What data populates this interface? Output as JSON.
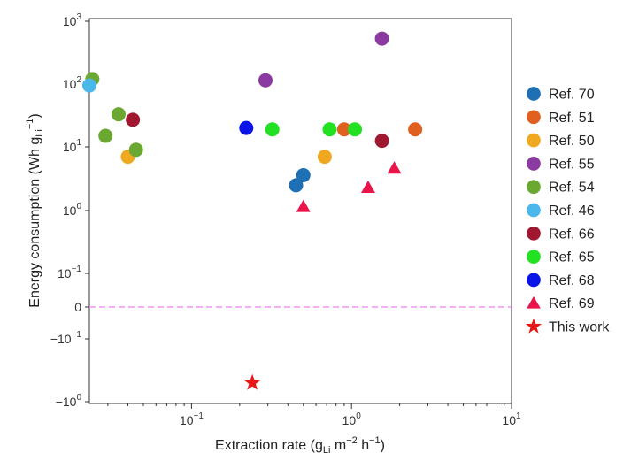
{
  "chart_data": {
    "type": "scatter",
    "title": "",
    "xlabel": {
      "main": "Extraction rate (g",
      "sub": "Li",
      "mid": " m",
      "sup1": "−2",
      "mid2": " h",
      "sup2": "−1",
      "end": ")"
    },
    "ylabel": {
      "main": "Energy consumption (Wh g",
      "sub": "Li",
      "sup": "−1",
      "end": ")"
    },
    "x_scale": "log",
    "xlim": [
      0.023,
      10
    ],
    "x_ticks": [
      {
        "value": 0.1,
        "base": "10",
        "exp": "−1"
      },
      {
        "value": 1,
        "base": "10",
        "exp": "0"
      },
      {
        "value": 10,
        "base": "10",
        "exp": "1"
      }
    ],
    "y_scale": "symlog",
    "y_ticks": [
      {
        "value": 1000,
        "base": "10",
        "exp": "3"
      },
      {
        "value": 100,
        "base": "10",
        "exp": "2"
      },
      {
        "value": 10,
        "base": "10",
        "exp": "1"
      },
      {
        "value": 1,
        "base": "10",
        "exp": "0"
      },
      {
        "value": 0.1,
        "base": "10",
        "exp": "−1"
      },
      {
        "value": 0,
        "base": "0",
        "exp": ""
      },
      {
        "value": -0.1,
        "base": "−10",
        "exp": "−1"
      },
      {
        "value": -1,
        "base": "−10",
        "exp": "0"
      }
    ],
    "reference_line": {
      "y": 0,
      "color": "#f07ef0",
      "style": "dashed"
    },
    "series": [
      {
        "name": "Ref. 70",
        "color": "#1f6fb5",
        "marker": "circle",
        "points": [
          [
            0.45,
            2.5
          ],
          [
            0.5,
            3.6
          ]
        ]
      },
      {
        "name": "Ref. 51",
        "color": "#e06020",
        "marker": "circle",
        "points": [
          [
            0.9,
            19
          ],
          [
            2.5,
            19
          ]
        ]
      },
      {
        "name": "Ref. 50",
        "color": "#f0a820",
        "marker": "circle",
        "points": [
          [
            0.04,
            7
          ],
          [
            0.68,
            7
          ]
        ]
      },
      {
        "name": "Ref. 55",
        "color": "#8a3aa0",
        "marker": "circle",
        "points": [
          [
            0.29,
            115
          ],
          [
            1.55,
            530
          ]
        ]
      },
      {
        "name": "Ref. 54",
        "color": "#6aa832",
        "marker": "circle",
        "points": [
          [
            0.024,
            120
          ],
          [
            0.029,
            15
          ],
          [
            0.035,
            33
          ],
          [
            0.045,
            9
          ]
        ]
      },
      {
        "name": "Ref. 46",
        "color": "#4ab8ea",
        "marker": "circle",
        "points": [
          [
            0.023,
            95
          ]
        ]
      },
      {
        "name": "Ref. 66",
        "color": "#a01830",
        "marker": "circle",
        "points": [
          [
            0.043,
            27
          ],
          [
            1.55,
            12.5
          ]
        ]
      },
      {
        "name": "Ref. 65",
        "color": "#22e022",
        "marker": "circle",
        "points": [
          [
            0.32,
            19
          ],
          [
            0.73,
            19
          ],
          [
            1.05,
            19
          ]
        ]
      },
      {
        "name": "Ref. 68",
        "color": "#0a14e8",
        "marker": "circle",
        "points": [
          [
            0.22,
            20
          ]
        ]
      },
      {
        "name": "Ref. 69",
        "color": "#e8144a",
        "marker": "triangle",
        "points": [
          [
            0.5,
            1.15
          ],
          [
            1.27,
            2.3
          ],
          [
            1.85,
            4.6
          ]
        ]
      },
      {
        "name": "This work",
        "color": "#e81818",
        "marker": "star",
        "points": [
          [
            0.24,
            -0.5
          ]
        ]
      }
    ]
  }
}
